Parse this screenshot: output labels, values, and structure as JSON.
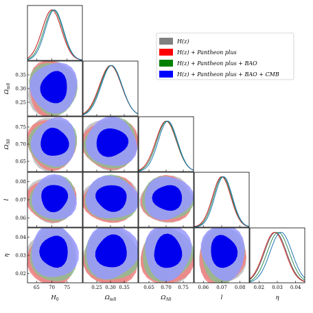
{
  "chart_data": {
    "type": "corner",
    "parameters": [
      {
        "id": "H0",
        "label": "H",
        "sub": "0",
        "range": [
          62,
          80
        ],
        "ticks": [
          "65",
          "70",
          "75"
        ],
        "tick_values": [
          65,
          70,
          75
        ]
      },
      {
        "id": "Om",
        "label": "Ω",
        "sub": "m0",
        "range": [
          0.2,
          0.4
        ],
        "ticks": [
          "0.25",
          "0.30",
          "0.35"
        ],
        "tick_values": [
          0.25,
          0.3,
          0.35
        ]
      },
      {
        "id": "OL",
        "label": "Ω",
        "sub": "Λ0",
        "range": [
          0.62,
          0.78
        ],
        "ticks": [
          "0.65",
          "0.70",
          "0.75"
        ],
        "tick_values": [
          0.65,
          0.7,
          0.75
        ]
      },
      {
        "id": "l",
        "label": "l",
        "sub": "",
        "range": [
          0.055,
          0.085
        ],
        "ticks": [
          "0.06",
          "0.07",
          "0.08"
        ],
        "tick_values": [
          0.06,
          0.07,
          0.08
        ]
      },
      {
        "id": "eta",
        "label": "η",
        "sub": "",
        "range": [
          0.015,
          0.045
        ],
        "ticks": [
          "0.02",
          "0.03",
          "0.04"
        ],
        "tick_values": [
          0.02,
          0.03,
          0.04
        ]
      }
    ],
    "series": [
      {
        "name": "H(z)",
        "color": "#808080",
        "means": [
          70.0,
          0.3,
          0.7,
          0.07,
          0.029
        ],
        "sigmas": [
          3.2,
          0.04,
          0.03,
          0.005,
          0.006
        ]
      },
      {
        "name": "H(z) + Pantheon plus",
        "color": "#ff0000",
        "means": [
          70.0,
          0.3,
          0.7,
          0.07,
          0.0285
        ],
        "sigmas": [
          3.2,
          0.04,
          0.03,
          0.005,
          0.006
        ]
      },
      {
        "name": "H(z) + Pantheon plus + BAO",
        "color": "#008000",
        "means": [
          70.5,
          0.302,
          0.702,
          0.0705,
          0.0305
        ],
        "sigmas": [
          3.1,
          0.039,
          0.029,
          0.0049,
          0.006
        ]
      },
      {
        "name": "H(z) + Pantheon plus + BAO + CMB",
        "color": "#0000ff",
        "means": [
          70.8,
          0.304,
          0.705,
          0.071,
          0.032
        ],
        "sigmas": [
          3.0,
          0.038,
          0.028,
          0.0048,
          0.006
        ]
      }
    ],
    "grid": false,
    "legend_position": "top-right"
  }
}
